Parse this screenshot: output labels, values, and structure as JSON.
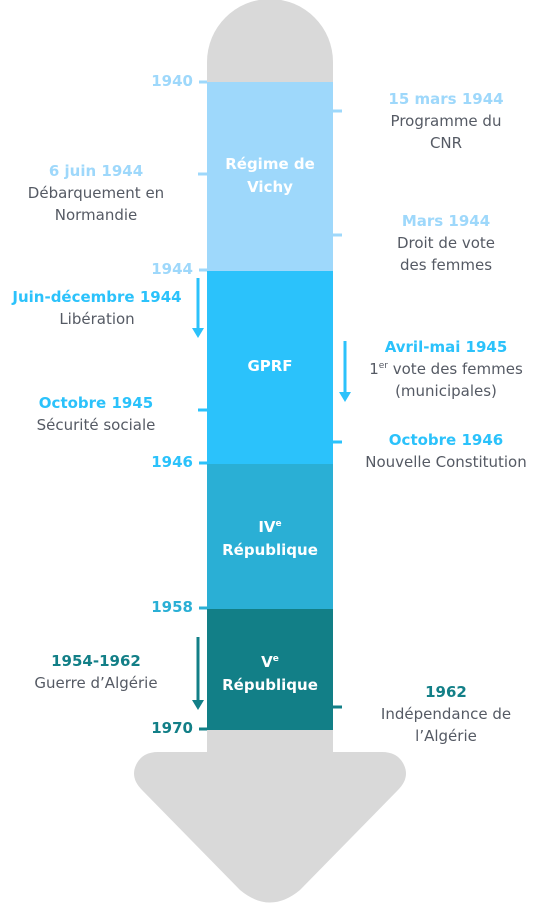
{
  "colors": {
    "vichy": "#9ed8fb",
    "gprf": "#2bc2fb",
    "ive": "#2aafd5",
    "ve": "#127f87",
    "light_text": "#9ed8fb",
    "mid_text": "#2bc2fb",
    "dark_text": "#127f87",
    "arrow": "#d9d9d9"
  },
  "years": {
    "y1940": "1940",
    "y1944": "1944",
    "y1946": "1946",
    "y1958": "1958",
    "y1970": "1970"
  },
  "periods": {
    "vichy": {
      "line1": "Régime de",
      "line2": "Vichy"
    },
    "gprf": {
      "line1": "GPRF"
    },
    "ive": {
      "line1": "IV",
      "sup": "e",
      "line2": "République"
    },
    "ve": {
      "line1": "V",
      "sup": "e",
      "line2": "République"
    }
  },
  "events": {
    "cnr": {
      "date": "15 mars 1944",
      "line1": "Programme du",
      "line2": "CNR"
    },
    "debarquement": {
      "date": "6 juin 1944",
      "line1": "Débarquement en",
      "line2": "Normandie"
    },
    "vote_droit": {
      "date": "Mars 1944",
      "line1": "Droit de vote",
      "line2": "des femmes"
    },
    "liberation": {
      "date": "Juin-décembre 1944",
      "line1": "Libération"
    },
    "premier_vote": {
      "date": "Avril-mai 1945",
      "prefix": "1",
      "sup": "er",
      "line1": " vote des femmes",
      "line2": "(municipales)"
    },
    "securite": {
      "date": "Octobre 1945",
      "line1": "Sécurité sociale"
    },
    "constitution": {
      "date": "Octobre 1946",
      "line1": "Nouvelle Constitution"
    },
    "guerre": {
      "date": "1954-1962",
      "line1": "Guerre d’Algérie"
    },
    "independance": {
      "date": "1962",
      "line1": "Indépendance de",
      "line2": "l’Algérie"
    }
  }
}
